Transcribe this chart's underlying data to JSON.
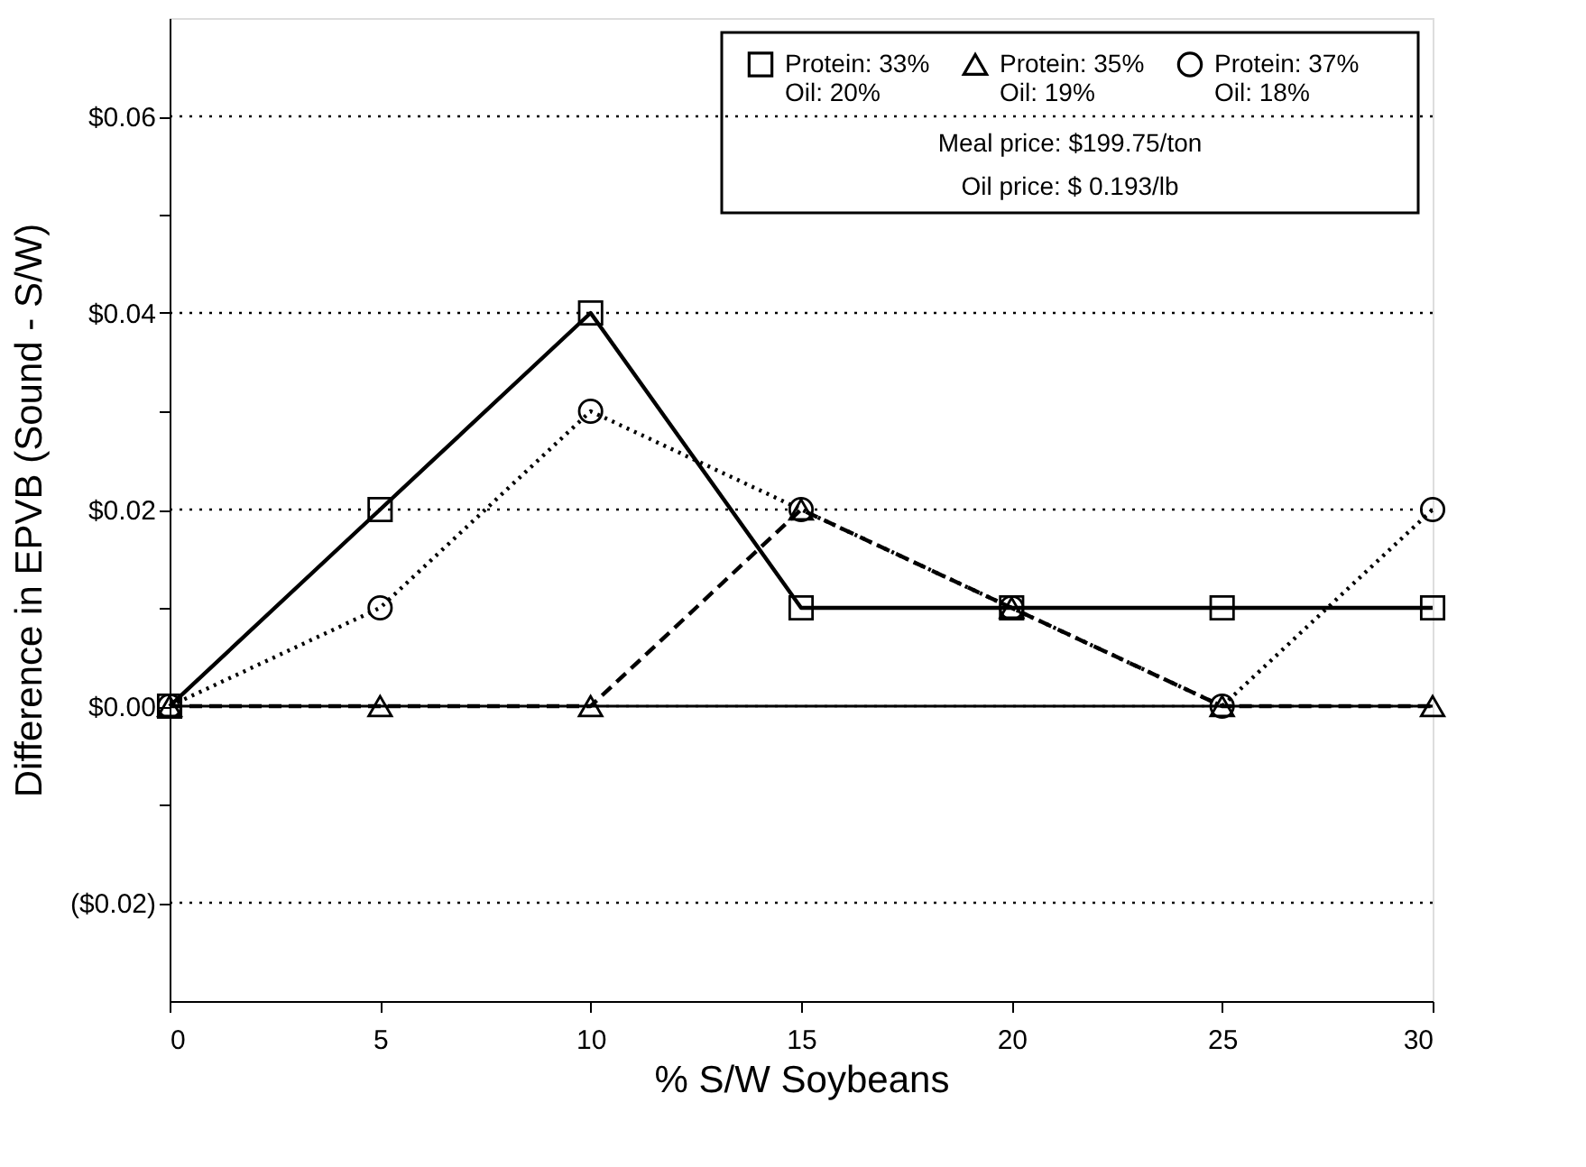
{
  "chart_data": {
    "type": "line",
    "xlabel": "% S/W Soybeans",
    "ylabel": "Difference in EPVB (Sound - S/W)",
    "x": [
      0,
      5,
      10,
      15,
      20,
      25,
      30
    ],
    "series": [
      {
        "name": "Protein: 33%\nOil: 20%",
        "color": "#000000",
        "line_style": "solid",
        "marker": "square",
        "values": [
          0,
          0.02,
          0.04,
          0.01,
          0.01,
          0.01,
          0.01
        ]
      },
      {
        "name": "Protein: 35%\nOil: 19%",
        "color": "#000000",
        "line_style": "dashed",
        "marker": "triangle",
        "values": [
          0,
          0,
          0,
          0.02,
          0.01,
          0,
          0
        ]
      },
      {
        "name": "Protein: 37%\nOil: 18%",
        "color": "#000000",
        "line_style": "dotted",
        "marker": "circle",
        "values": [
          0,
          0.01,
          0.03,
          0.02,
          0.01,
          0,
          0.02
        ]
      }
    ],
    "xlim": [
      0,
      30
    ],
    "xticks": [
      0,
      5,
      10,
      15,
      20,
      25,
      30
    ],
    "ylim": [
      -0.03,
      0.07
    ],
    "yticks": [
      {
        "value": -0.02,
        "label": "($0.02)"
      },
      {
        "value": -0.01,
        "label": null
      },
      {
        "value": 0,
        "label": "$0.00"
      },
      {
        "value": 0.01,
        "label": null
      },
      {
        "value": 0.02,
        "label": "$0.02"
      },
      {
        "value": 0.03,
        "label": null
      },
      {
        "value": 0.04,
        "label": "$0.04"
      },
      {
        "value": 0.05,
        "label": null
      },
      {
        "value": 0.06,
        "label": "$0.06"
      }
    ],
    "grid": "y",
    "ref_lines": [
      {
        "axis": "y",
        "value": 0,
        "label": null,
        "color": "#000000",
        "line_style": "solid"
      }
    ],
    "legend": "top right",
    "annotations": [
      "Meal price: $199.75/ton",
      "Oil price: $ 0.193/lb"
    ]
  }
}
